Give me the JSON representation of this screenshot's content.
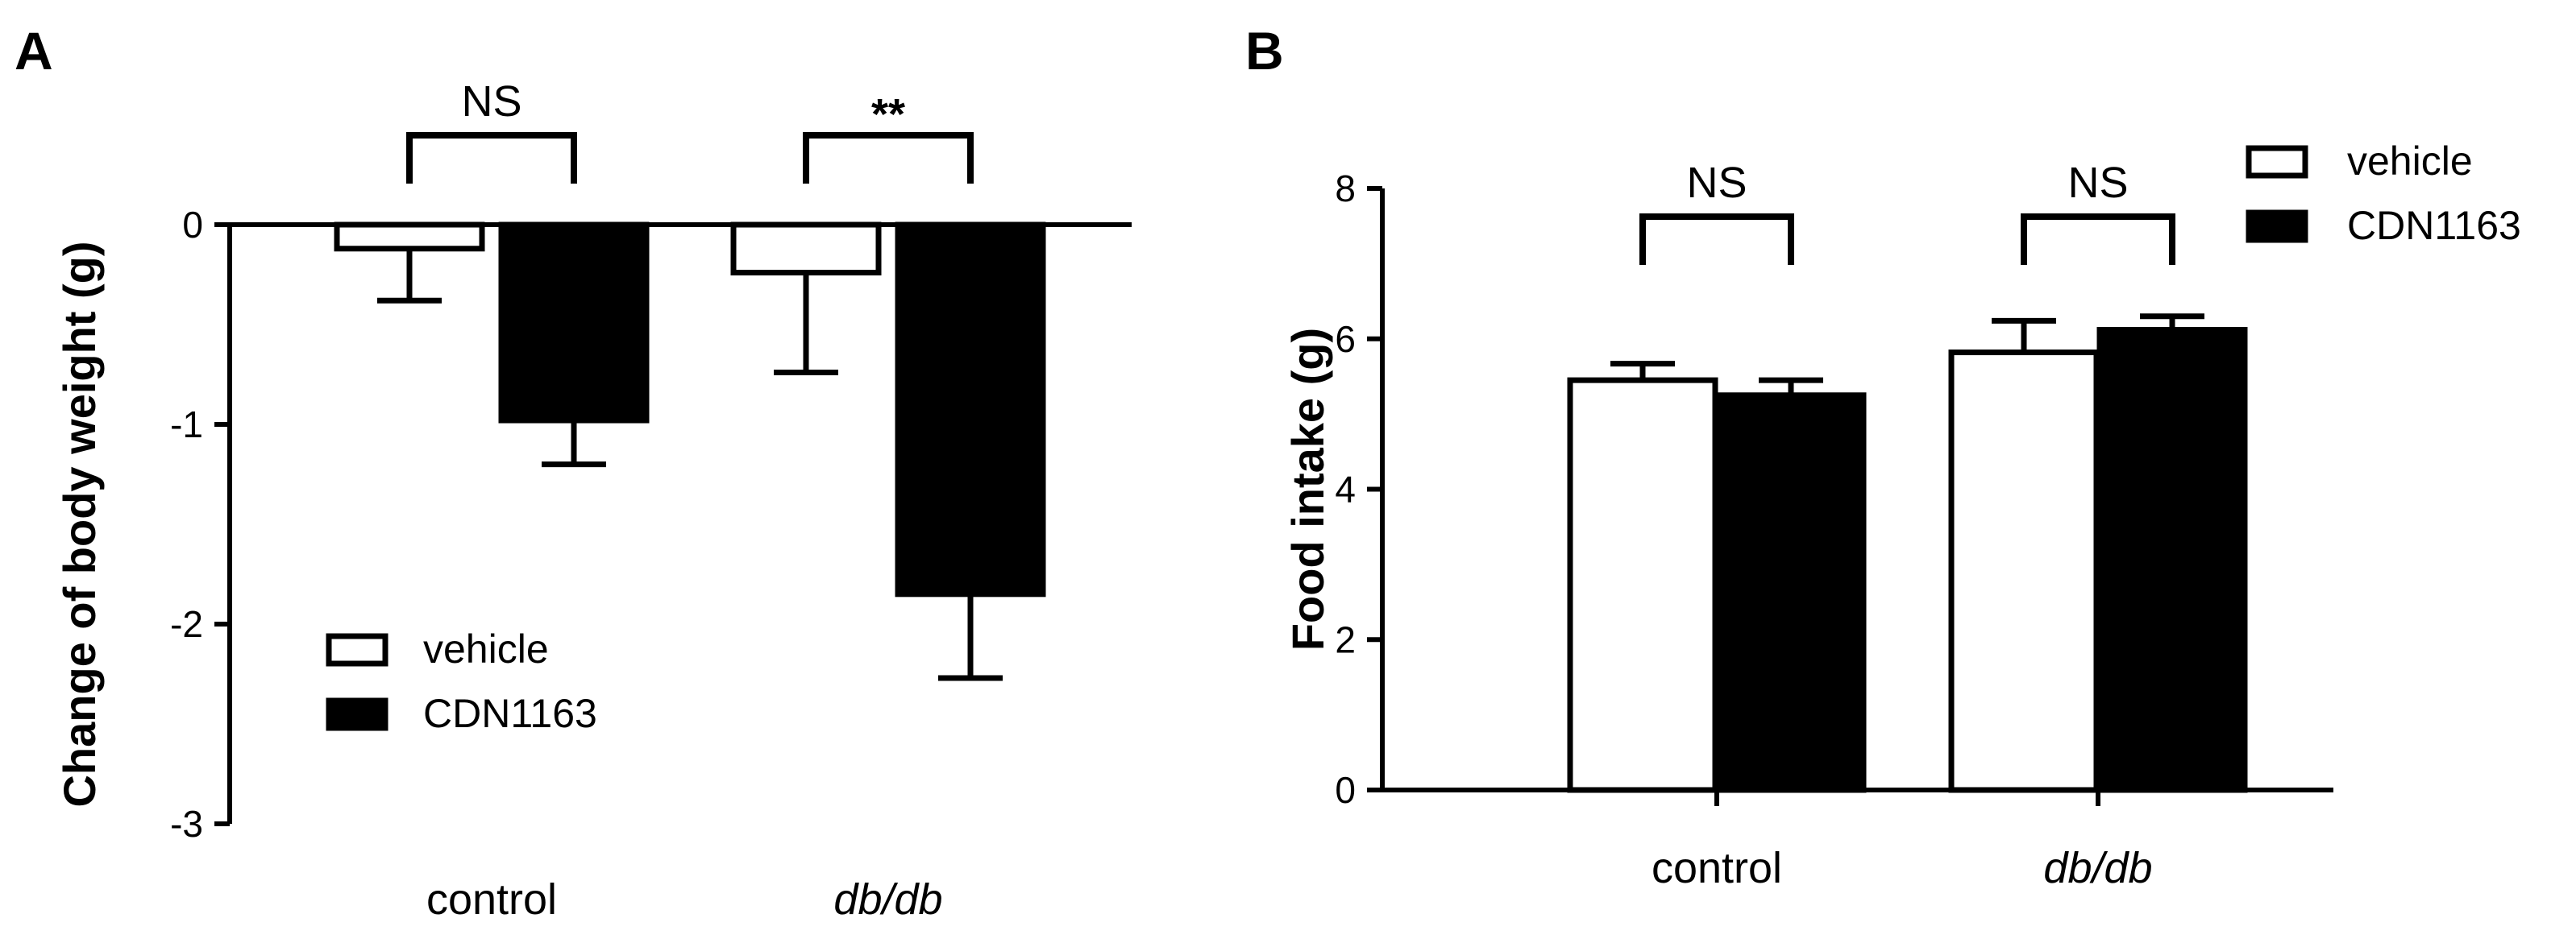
{
  "figure": {
    "panels": [
      "A",
      "B"
    ]
  },
  "colors": {
    "vehicle_fill": "#ffffff",
    "cdn_fill": "#000000",
    "stroke": "#000000"
  },
  "chart_data": [
    {
      "panel": "A",
      "type": "bar",
      "title": "",
      "xlabel": "",
      "ylabel": "Change of body weight (g)",
      "categories": [
        "control",
        "db/db"
      ],
      "category_italic": [
        false,
        true
      ],
      "series": [
        {
          "name": "vehicle",
          "values": [
            -0.12,
            -0.24
          ],
          "errors": [
            0.26,
            0.5
          ]
        },
        {
          "name": "CDN1163",
          "values": [
            -0.98,
            -1.85
          ],
          "errors": [
            0.22,
            0.42
          ]
        }
      ],
      "ylim": [
        -3,
        0
      ],
      "yticks": [
        "0",
        "-1",
        "-2",
        "-3"
      ],
      "significance": [
        "NS",
        "**"
      ],
      "legend": {
        "position": "bottom-left",
        "entries": [
          "vehicle",
          "CDN1163"
        ]
      },
      "grid": false
    },
    {
      "panel": "B",
      "type": "bar",
      "title": "",
      "xlabel": "",
      "ylabel": "Food intake (g)",
      "categories": [
        "control",
        "db/db"
      ],
      "category_italic": [
        false,
        true
      ],
      "series": [
        {
          "name": "vehicle",
          "values": [
            5.45,
            5.82
          ],
          "errors": [
            0.22,
            0.42
          ]
        },
        {
          "name": "CDN1163",
          "values": [
            5.25,
            6.12
          ],
          "errors": [
            0.2,
            0.18
          ]
        }
      ],
      "ylim": [
        0,
        8
      ],
      "yticks": [
        "0",
        "2",
        "4",
        "6",
        "8"
      ],
      "significance": [
        "NS",
        "NS"
      ],
      "legend": {
        "position": "top-right",
        "entries": [
          "vehicle",
          "CDN1163"
        ]
      },
      "grid": false
    }
  ]
}
